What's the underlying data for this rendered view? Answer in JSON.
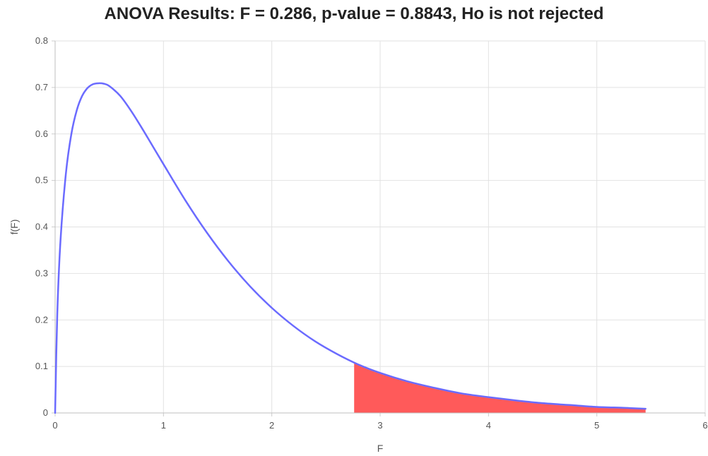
{
  "chart_data": {
    "type": "area",
    "title": "ANOVA Results: F = 0.286, p-value = 0.8843,  Ho is not rejected",
    "xlabel": "F",
    "ylabel": "f(F)",
    "xlim": [
      0,
      6
    ],
    "ylim": [
      0,
      0.8
    ],
    "x_ticks": [
      "0",
      "1",
      "2",
      "3",
      "4",
      "5",
      "6"
    ],
    "y_ticks": [
      "0",
      "0.1",
      "0.2",
      "0.3",
      "0.4",
      "0.5",
      "0.6",
      "0.7",
      "0.8"
    ],
    "grid": true,
    "legend": "none",
    "curve": {
      "color": "#6b6bff",
      "x": [
        0,
        0.02,
        0.05,
        0.1,
        0.15,
        0.2,
        0.25,
        0.3,
        0.35,
        0.4,
        0.45,
        0.5,
        0.6,
        0.7,
        0.8,
        0.9,
        1.0,
        1.2,
        1.4,
        1.6,
        1.8,
        2.0,
        2.2,
        2.4,
        2.6,
        2.8,
        3.0,
        3.25,
        3.5,
        3.75,
        4.0,
        4.25,
        4.5,
        4.75,
        5.0,
        5.25,
        5.45
      ],
      "y": [
        0,
        0.213,
        0.372,
        0.516,
        0.6,
        0.651,
        0.682,
        0.699,
        0.707,
        0.709,
        0.708,
        0.703,
        0.682,
        0.65,
        0.613,
        0.574,
        0.535,
        0.458,
        0.388,
        0.326,
        0.272,
        0.226,
        0.187,
        0.154,
        0.127,
        0.104,
        0.086,
        0.068,
        0.054,
        0.042,
        0.034,
        0.027,
        0.021,
        0.017,
        0.013,
        0.011,
        0.009
      ]
    },
    "critical_region": {
      "color": "#ff5a5a",
      "x_start": 2.76,
      "x_end": 5.45
    }
  }
}
